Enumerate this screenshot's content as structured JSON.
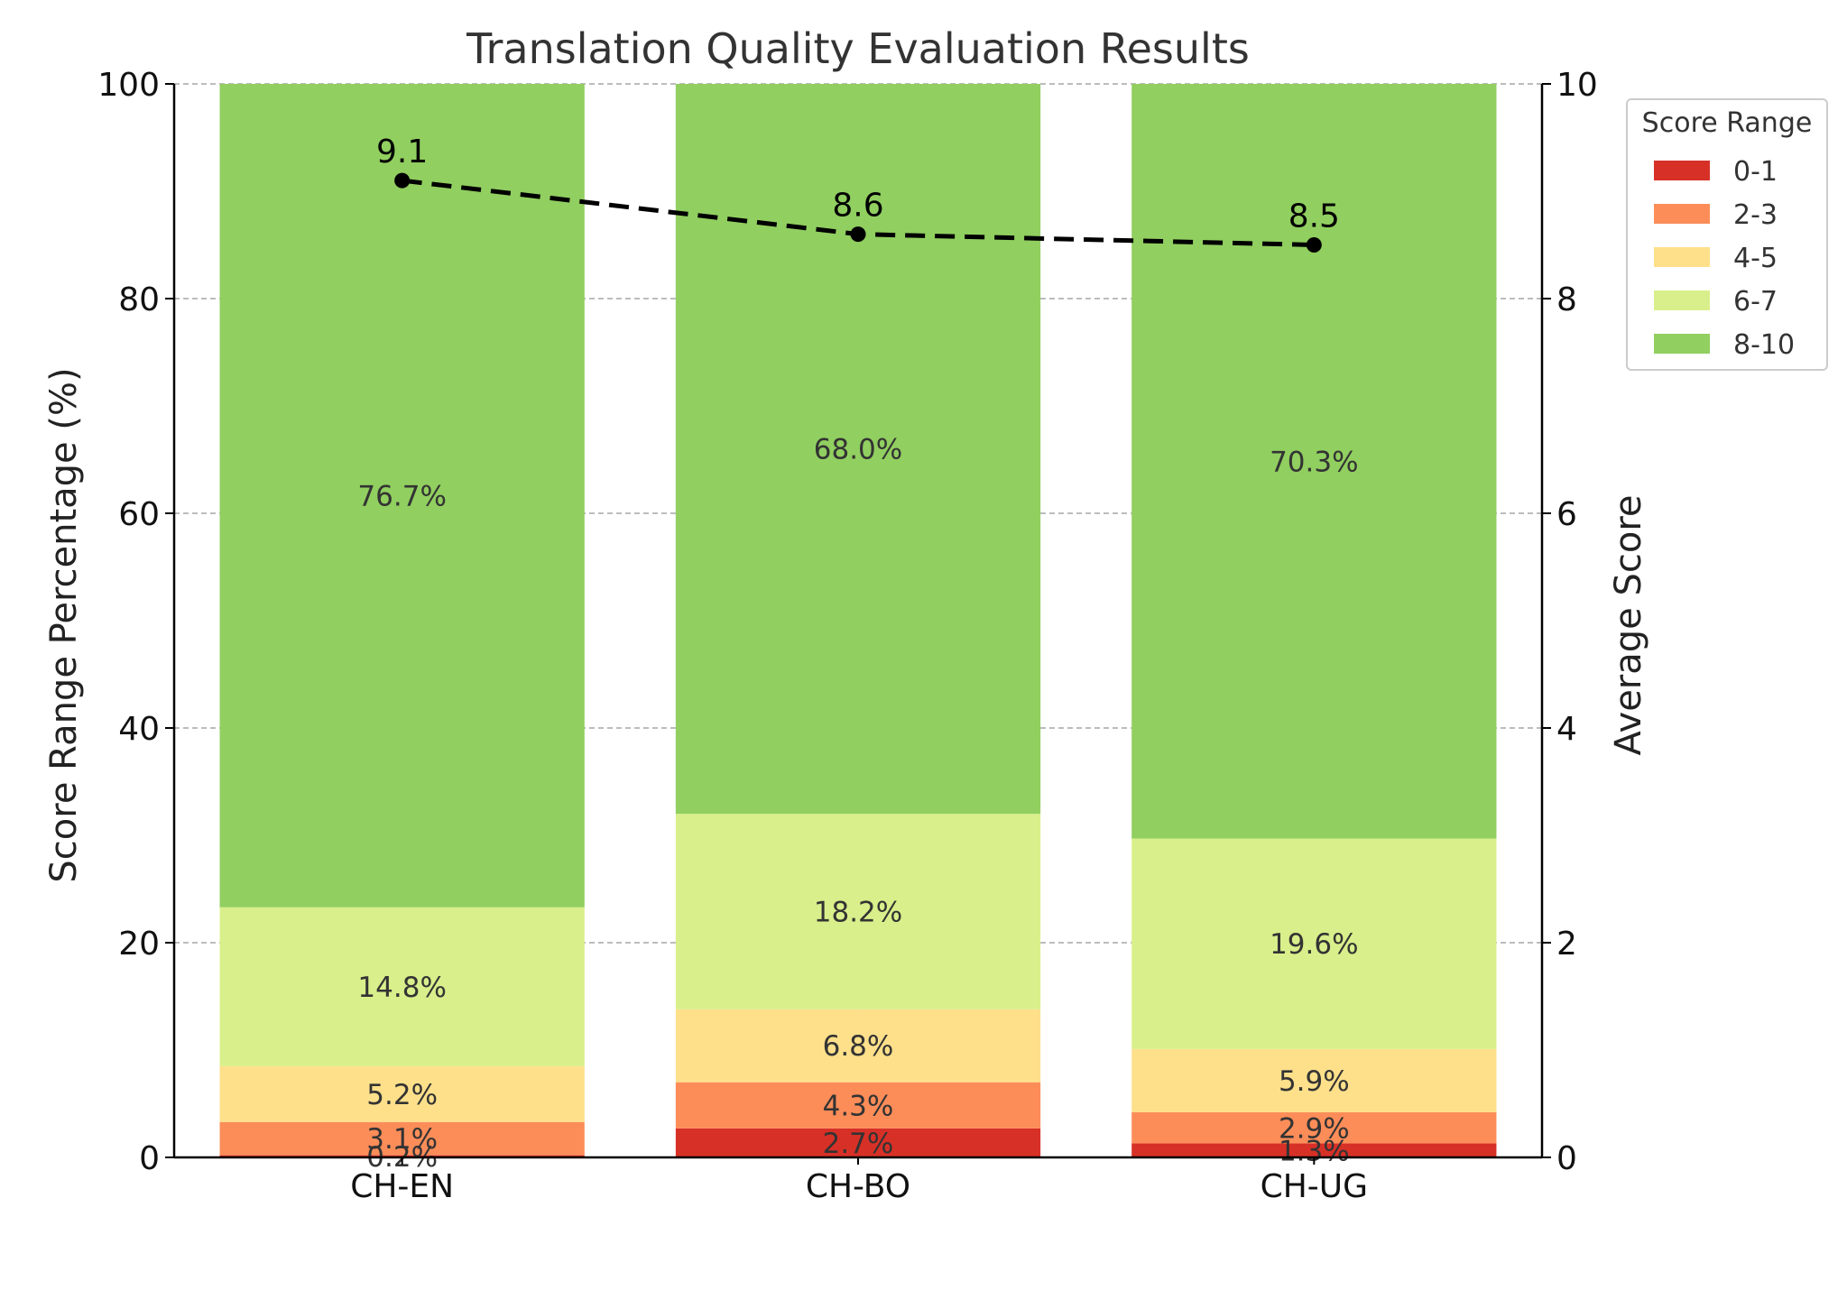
{
  "chart_data": {
    "type": "bar",
    "stacked": true,
    "title": "Translation Quality Evaluation Results",
    "ylabel": "Score Range Percentage (%)",
    "y2label": "Average Score",
    "xlabel": "",
    "categories": [
      "CH-EN",
      "CH-BO",
      "CH-UG"
    ],
    "ylim": [
      0,
      100
    ],
    "y2lim": [
      0,
      10
    ],
    "yticks": [
      0,
      20,
      40,
      60,
      80,
      100
    ],
    "y2ticks": [
      0,
      2,
      4,
      6,
      8,
      10
    ],
    "grid": true,
    "legend": {
      "title": "Score Range",
      "placement": "right-top-outside"
    },
    "series": [
      {
        "name": "0-1",
        "color": "#d73027",
        "values": [
          0.2,
          2.7,
          1.3
        ],
        "labels": [
          "0.2%",
          "2.7%",
          "1.3%"
        ]
      },
      {
        "name": "2-3",
        "color": "#fc8d59",
        "values": [
          3.1,
          4.3,
          2.9
        ],
        "labels": [
          "3.1%",
          "4.3%",
          "2.9%"
        ]
      },
      {
        "name": "4-5",
        "color": "#fee08b",
        "values": [
          5.2,
          6.8,
          5.9
        ],
        "labels": [
          "5.2%",
          "6.8%",
          "5.9%"
        ]
      },
      {
        "name": "6-7",
        "color": "#d9ef8b",
        "values": [
          14.8,
          18.2,
          19.6
        ],
        "labels": [
          "14.8%",
          "18.2%",
          "19.6%"
        ]
      },
      {
        "name": "8-10",
        "color": "#91cf60",
        "values": [
          76.7,
          68.0,
          70.3
        ],
        "labels": [
          "76.7%",
          "68.0%",
          "70.3%"
        ]
      }
    ],
    "line": {
      "axis": "right",
      "color": "#000000",
      "style": "dashed",
      "values": [
        9.1,
        8.6,
        8.5
      ],
      "labels": [
        "9.1",
        "8.6",
        "8.5"
      ]
    }
  }
}
